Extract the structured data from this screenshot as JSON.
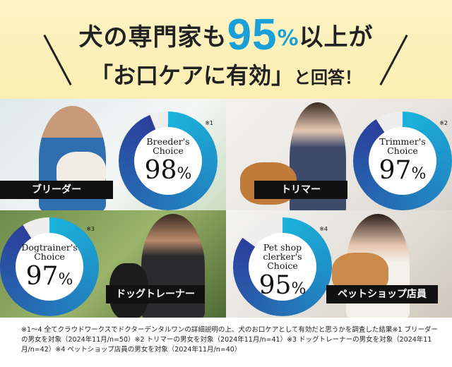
{
  "header": {
    "line1_pre": "犬の専門家も",
    "line1_num": "95",
    "line1_pct": "%",
    "line1_post": "以上が",
    "line2_main": "「お口ケアに有効」",
    "line2_post": "と回答！"
  },
  "colors": {
    "accent": "#1aa0d8",
    "donut_start": "#1ab4dc",
    "donut_end": "#2c3f9a",
    "header_bg": "#fbeeb0"
  },
  "panels": [
    {
      "tag": "ブリーダー",
      "choice": "Breeder's Choice",
      "value": 98,
      "unit": "%",
      "note": "※1"
    },
    {
      "tag": "トリマー",
      "choice": "Trimmer's Choice",
      "value": 97,
      "unit": "%",
      "note": "※2"
    },
    {
      "tag": "ドッグトレーナー",
      "choice": "Dogtrainer's Choice",
      "value": 97,
      "unit": "%",
      "note": "※3"
    },
    {
      "tag": "ペットショップ店員",
      "choice": "Pet shop clerker's Choice",
      "value": 95,
      "unit": "%",
      "note": "※4"
    }
  ],
  "footnote": "※1～4 全てクラウドワークスでドクターデンタルワンの詳細説明の上、犬のお口ケアとして有効だと思うかを調査した結果※1 ブリーダーの男女を対象（2024年11月/n=50）※2 トリマーの男女を対象（2024年11月/n=41）※3 ドッグトレーナーの男女を対象（2024年11月/n=42）※4 ペットショップ店員の男女を対象（2024年11月/n=40）"
}
